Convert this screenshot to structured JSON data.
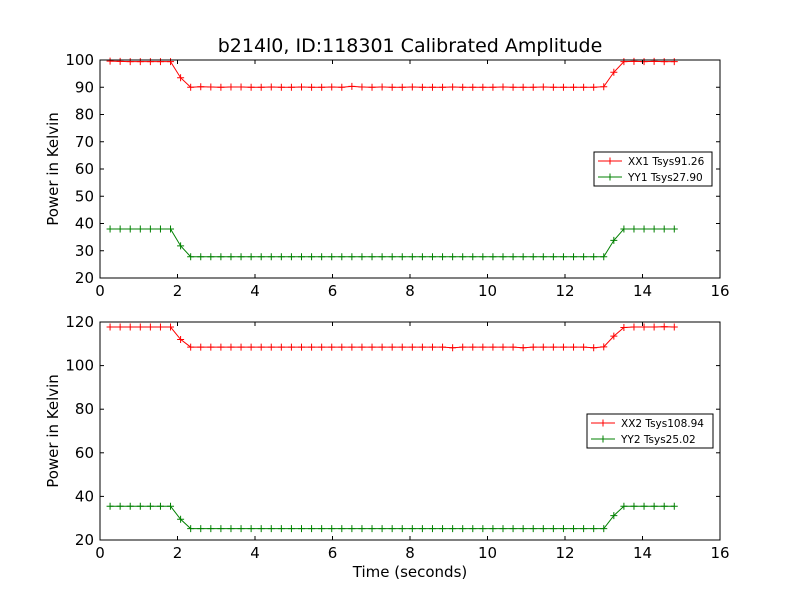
{
  "title": "b214l0, ID:118301 Calibrated Amplitude",
  "chart_data": [
    {
      "type": "line",
      "title": "b214l0, ID:118301 Calibrated Amplitude",
      "xlabel": "",
      "ylabel": "Power in Kelvin",
      "xlim": [
        0,
        16
      ],
      "ylim": [
        20,
        100
      ],
      "xticks": [
        0,
        2,
        4,
        6,
        8,
        10,
        12,
        14,
        16
      ],
      "yticks": [
        20,
        30,
        40,
        50,
        60,
        70,
        80,
        90,
        100
      ],
      "grid": false,
      "legend_position": "right",
      "x": [
        0.26,
        0.52,
        0.78,
        1.04,
        1.3,
        1.56,
        1.82,
        2.08,
        2.34,
        2.6,
        2.86,
        3.12,
        3.38,
        3.64,
        3.9,
        4.16,
        4.42,
        4.68,
        4.94,
        5.2,
        5.46,
        5.72,
        5.98,
        6.24,
        6.5,
        6.76,
        7.02,
        7.28,
        7.54,
        7.8,
        8.06,
        8.32,
        8.58,
        8.84,
        9.1,
        9.36,
        9.62,
        9.88,
        10.14,
        10.4,
        10.66,
        10.92,
        11.18,
        11.44,
        11.7,
        11.96,
        12.22,
        12.48,
        12.74,
        13.0,
        13.26,
        13.52,
        13.78,
        14.04,
        14.3,
        14.56,
        14.82
      ],
      "series": [
        {
          "name": "XX1 Tsys91.26",
          "color": "#ff0000",
          "values": [
            99.6,
            99.5,
            99.4,
            99.4,
            99.4,
            99.4,
            99.4,
            93.5,
            90.0,
            90.2,
            90.1,
            90.0,
            90.1,
            90.1,
            90.0,
            90.0,
            90.1,
            90.0,
            90.0,
            90.1,
            90.0,
            90.0,
            90.1,
            90.0,
            90.3,
            90.1,
            90.0,
            90.1,
            90.0,
            90.0,
            90.1,
            90.0,
            90.0,
            90.0,
            90.1,
            90.0,
            90.0,
            90.0,
            90.0,
            90.1,
            90.0,
            90.0,
            90.0,
            90.1,
            90.0,
            90.0,
            90.0,
            90.0,
            90.0,
            90.2,
            95.5,
            99.4,
            99.5,
            99.4,
            99.5,
            99.4,
            99.4
          ]
        },
        {
          "name": "YY1 Tsys27.90",
          "color": "#008000",
          "values": [
            38.0,
            38.0,
            38.0,
            38.0,
            38.0,
            38.0,
            38.0,
            31.8,
            27.8,
            27.8,
            27.8,
            27.8,
            27.8,
            27.8,
            27.8,
            27.8,
            27.8,
            27.8,
            27.8,
            27.8,
            27.8,
            27.8,
            27.8,
            27.8,
            27.8,
            27.8,
            27.8,
            27.8,
            27.8,
            27.8,
            27.8,
            27.8,
            27.8,
            27.8,
            27.8,
            27.8,
            27.8,
            27.8,
            27.8,
            27.8,
            27.8,
            27.8,
            27.8,
            27.8,
            27.8,
            27.8,
            27.8,
            27.8,
            27.8,
            27.8,
            33.8,
            38.0,
            38.0,
            38.0,
            38.0,
            38.0,
            38.0
          ]
        }
      ]
    },
    {
      "type": "line",
      "title": "",
      "xlabel": "Time (seconds)",
      "ylabel": "Power in Kelvin",
      "xlim": [
        0,
        16
      ],
      "ylim": [
        20,
        120
      ],
      "xticks": [
        0,
        2,
        4,
        6,
        8,
        10,
        12,
        14,
        16
      ],
      "yticks": [
        20,
        40,
        60,
        80,
        100,
        120
      ],
      "grid": false,
      "legend_position": "right",
      "x": [
        0.26,
        0.52,
        0.78,
        1.04,
        1.3,
        1.56,
        1.82,
        2.08,
        2.34,
        2.6,
        2.86,
        3.12,
        3.38,
        3.64,
        3.9,
        4.16,
        4.42,
        4.68,
        4.94,
        5.2,
        5.46,
        5.72,
        5.98,
        6.24,
        6.5,
        6.76,
        7.02,
        7.28,
        7.54,
        7.8,
        8.06,
        8.32,
        8.58,
        8.84,
        9.1,
        9.36,
        9.62,
        9.88,
        10.14,
        10.4,
        10.66,
        10.92,
        11.18,
        11.44,
        11.7,
        11.96,
        12.22,
        12.48,
        12.74,
        13.0,
        13.26,
        13.52,
        13.78,
        14.04,
        14.3,
        14.56,
        14.82
      ],
      "series": [
        {
          "name": "XX2 Tsys108.94",
          "color": "#ff0000",
          "values": [
            117.7,
            117.7,
            117.7,
            117.7,
            117.7,
            117.7,
            117.7,
            112.0,
            108.5,
            108.5,
            108.5,
            108.5,
            108.5,
            108.5,
            108.5,
            108.5,
            108.5,
            108.5,
            108.5,
            108.5,
            108.5,
            108.5,
            108.5,
            108.5,
            108.5,
            108.5,
            108.5,
            108.5,
            108.5,
            108.5,
            108.5,
            108.5,
            108.5,
            108.5,
            108.2,
            108.5,
            108.5,
            108.5,
            108.5,
            108.5,
            108.5,
            108.2,
            108.5,
            108.5,
            108.5,
            108.5,
            108.5,
            108.5,
            108.2,
            108.6,
            113.5,
            117.5,
            117.7,
            117.7,
            117.7,
            117.8,
            117.7
          ]
        },
        {
          "name": "YY2 Tsys25.02",
          "color": "#008000",
          "values": [
            35.5,
            35.5,
            35.5,
            35.5,
            35.5,
            35.5,
            35.5,
            29.5,
            25.2,
            25.2,
            25.2,
            25.2,
            25.2,
            25.2,
            25.2,
            25.2,
            25.2,
            25.2,
            25.2,
            25.2,
            25.2,
            25.2,
            25.2,
            25.2,
            25.2,
            25.2,
            25.2,
            25.2,
            25.2,
            25.2,
            25.2,
            25.2,
            25.2,
            25.2,
            25.2,
            25.2,
            25.2,
            25.2,
            25.2,
            25.2,
            25.2,
            25.2,
            25.2,
            25.2,
            25.2,
            25.2,
            25.2,
            25.2,
            25.2,
            25.2,
            31.2,
            35.5,
            35.5,
            35.5,
            35.5,
            35.5,
            35.5
          ]
        }
      ]
    }
  ]
}
